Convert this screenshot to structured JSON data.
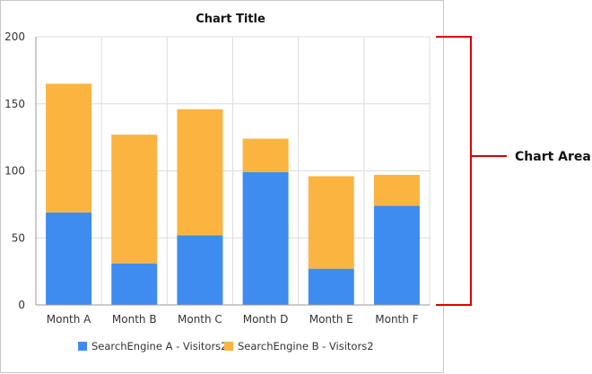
{
  "chart_data": {
    "type": "bar",
    "stacked": true,
    "title": "Chart Title",
    "categories": [
      "Month A",
      "Month B",
      "Month C",
      "Month D",
      "Month E",
      "Month F"
    ],
    "series": [
      {
        "name": "SearchEngine A - Visitors2",
        "color": "#3f8cf0",
        "values": [
          69,
          31,
          52,
          99,
          27,
          74
        ]
      },
      {
        "name": "SearchEngine B - Visitors2",
        "color": "#fcb441",
        "values": [
          96,
          96,
          94,
          25,
          69,
          23
        ]
      }
    ],
    "ylim": [
      0,
      200
    ],
    "yticks": [
      0,
      50,
      100,
      150,
      200
    ],
    "grid": true,
    "legend_position": "bottom",
    "callout": {
      "label": "Chart Area",
      "color": "#e00000"
    }
  }
}
